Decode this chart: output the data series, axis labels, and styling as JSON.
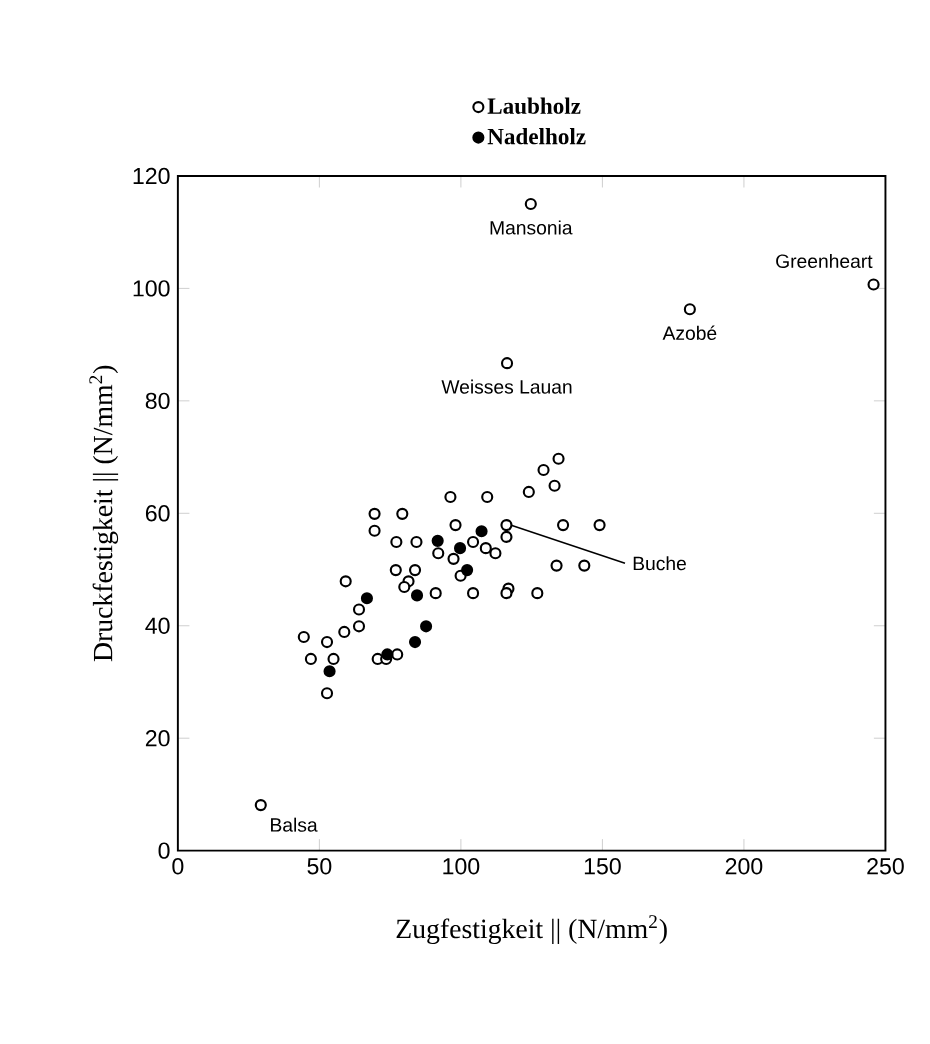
{
  "chart_data": {
    "type": "scatter",
    "xlabel": "Zugfestigkeit || (N/mm$^{2}$)",
    "ylabel": "Druckfestigkeit || (N/mm$^{2}$)",
    "xlim": [
      0,
      250
    ],
    "ylim": [
      0,
      120
    ],
    "xticks": [
      0,
      50,
      100,
      150,
      200,
      250
    ],
    "yticks": [
      0,
      20,
      40,
      60,
      80,
      100,
      120
    ],
    "grid": false,
    "legend": "top",
    "marker": "circle",
    "series": [
      {
        "name": "Laubholz",
        "color": "#000000",
        "x": [
          44.5,
          52.7,
          47,
          55,
          52.7,
          58.8,
          59.3,
          64,
          64,
          70.6,
          73.6,
          77.5,
          69.5,
          69.5,
          79.3,
          77.2,
          84.3,
          77,
          83.8,
          81.5,
          80,
          91.1,
          92,
          96.3,
          98.1,
          97.4,
          99.9,
          104.3,
          104.3,
          109.3,
          108.8,
          112.2,
          116.1,
          116.1,
          116.8,
          116.1,
          127,
          124,
          129.2,
          134.5,
          133.1,
          136.1,
          133.8,
          143.6,
          149,
          124.7,
          245.8,
          180.9,
          116.3,
          29.3
        ],
        "values": [
          38,
          37.1,
          34.1,
          34.1,
          28,
          38.9,
          47.9,
          39.9,
          42.9,
          34.1,
          34.1,
          34.9,
          59.9,
          56.9,
          59.9,
          54.9,
          54.9,
          49.9,
          49.9,
          47.9,
          46.9,
          45.8,
          52.9,
          62.9,
          57.9,
          51.9,
          48.9,
          45.8,
          54.9,
          62.9,
          53.8,
          52.9,
          57.9,
          55.8,
          46.6,
          45.8,
          45.8,
          63.8,
          67.7,
          69.7,
          64.9,
          57.9,
          50.7,
          50.7,
          57.9,
          115,
          100.7,
          96.3,
          86.7,
          8.1
        ]
      },
      {
        "name": "Nadelholz",
        "color": "#000000",
        "x": [
          53.6,
          66.8,
          74,
          83.8,
          84.5,
          87.7,
          91.8,
          99.7,
          102.2,
          107.3
        ],
        "values": [
          31.9,
          44.9,
          34.9,
          37.1,
          45.4,
          39.9,
          55.1,
          53.8,
          49.9,
          56.8
        ]
      }
    ],
    "annotations": [
      {
        "text": "Mansonia",
        "x": 124.7,
        "y": 115
      },
      {
        "text": "Greenheart",
        "x": 245.8,
        "y": 100.7
      },
      {
        "text": "Azobé",
        "x": 180.9,
        "y": 96.3
      },
      {
        "text": "Weisses Lauan",
        "x": 116.3,
        "y": 86.7
      },
      {
        "text": "Buche",
        "x": 117,
        "y": 58
      },
      {
        "text": "Balsa",
        "x": 29.3,
        "y": 8.1
      }
    ]
  }
}
